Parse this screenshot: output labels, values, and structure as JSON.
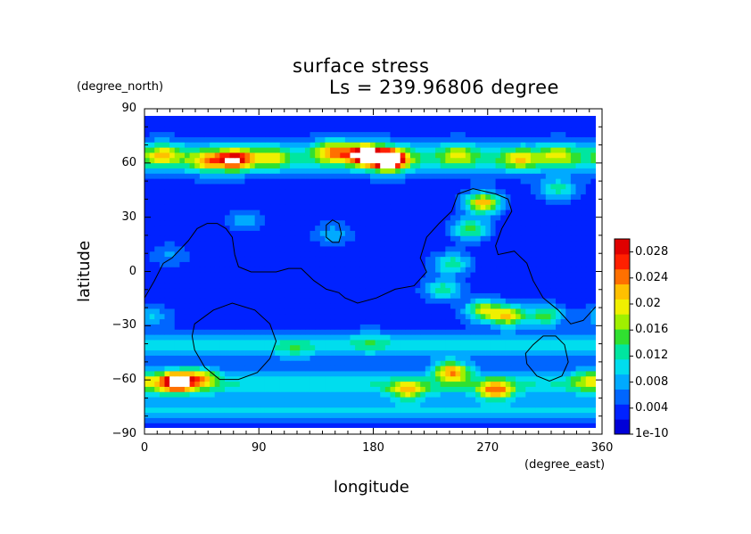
{
  "chart_data": {
    "type": "heatmap",
    "title": "surface stress",
    "subtitle": "Ls = 239.96806 degree",
    "xlabel": "longitude",
    "ylabel": "latitude",
    "x_unit": "(degree_east)",
    "y_unit": "(degree_north)",
    "xlim": [
      0,
      360
    ],
    "ylim": [
      -90,
      90
    ],
    "x_ticks": [
      "0",
      "90",
      "180",
      "270",
      "360"
    ],
    "y_ticks": [
      "90",
      "60",
      "30",
      "0",
      "-30",
      "-60",
      "-90"
    ],
    "colorbar": {
      "min": 0,
      "max": 0.03,
      "tick_labels": [
        "1e-10",
        "0.004",
        "0.008",
        "0.012",
        "0.016",
        "0.02",
        "0.024",
        "0.028"
      ],
      "tick_values": [
        0,
        0.004,
        0.008,
        0.012,
        0.016,
        0.02,
        0.024,
        0.028
      ],
      "colors": [
        "#0000d8",
        "#0022ff",
        "#0066ff",
        "#00aaff",
        "#00ddee",
        "#00e6a0",
        "#30e030",
        "#a0f000",
        "#f0f000",
        "#ffc000",
        "#ff7000",
        "#ff2000",
        "#e00000"
      ]
    },
    "grid": false,
    "features": [
      {
        "lon": 195,
        "lat": 65,
        "value": 0.032
      },
      {
        "lon": 175,
        "lat": 68,
        "value": 0.026
      },
      {
        "lon": 150,
        "lat": 70,
        "value": 0.016
      },
      {
        "lon": 72,
        "lat": 65,
        "value": 0.022
      },
      {
        "lon": 50,
        "lat": 64,
        "value": 0.014
      },
      {
        "lon": 15,
        "lat": 68,
        "value": 0.013
      },
      {
        "lon": 100,
        "lat": 66,
        "value": 0.011
      },
      {
        "lon": 250,
        "lat": 68,
        "value": 0.011
      },
      {
        "lon": 300,
        "lat": 65,
        "value": 0.012
      },
      {
        "lon": 330,
        "lat": 68,
        "value": 0.011
      },
      {
        "lon": 270,
        "lat": 40,
        "value": 0.022
      },
      {
        "lon": 260,
        "lat": 25,
        "value": 0.015
      },
      {
        "lon": 245,
        "lat": 5,
        "value": 0.013
      },
      {
        "lon": 238,
        "lat": -10,
        "value": 0.013
      },
      {
        "lon": 290,
        "lat": -25,
        "value": 0.02
      },
      {
        "lon": 270,
        "lat": -22,
        "value": 0.017
      },
      {
        "lon": 320,
        "lat": -25,
        "value": 0.015
      },
      {
        "lon": 245,
        "lat": -57,
        "value": 0.02
      },
      {
        "lon": 280,
        "lat": -68,
        "value": 0.018
      },
      {
        "lon": 210,
        "lat": -68,
        "value": 0.015
      },
      {
        "lon": 25,
        "lat": -63,
        "value": 0.027
      },
      {
        "lon": 45,
        "lat": -61,
        "value": 0.015
      },
      {
        "lon": 355,
        "lat": -62,
        "value": 0.012
      },
      {
        "lon": 330,
        "lat": 48,
        "value": 0.012
      },
      {
        "lon": 150,
        "lat": 22,
        "value": 0.008
      },
      {
        "lon": 80,
        "lat": 30,
        "value": 0.008
      },
      {
        "lon": 20,
        "lat": 10,
        "value": 0.007
      },
      {
        "lon": 180,
        "lat": -40,
        "value": 0.007
      },
      {
        "lon": 120,
        "lat": -45,
        "value": 0.007
      },
      {
        "lon": 5,
        "lat": -25,
        "value": 0.009
      }
    ],
    "bands": [
      {
        "lat": 66,
        "width": 9,
        "value": 0.009
      },
      {
        "lat": -42,
        "width": 7,
        "value": 0.007
      },
      {
        "lat": -65,
        "width": 8,
        "value": 0.008
      },
      {
        "lat": -80,
        "width": 5,
        "value": 0.006
      }
    ],
    "contours": [
      {
        "name": "northern-highland-boundary",
        "closed": false,
        "points": [
          [
            0,
            -15
          ],
          [
            8,
            -5
          ],
          [
            15,
            5
          ],
          [
            22,
            8
          ],
          [
            35,
            18
          ],
          [
            42,
            25
          ],
          [
            50,
            28
          ],
          [
            58,
            28
          ],
          [
            65,
            25
          ],
          [
            70,
            20
          ],
          [
            72,
            10
          ],
          [
            75,
            3
          ],
          [
            85,
            0
          ],
          [
            105,
            0
          ],
          [
            115,
            2
          ],
          [
            125,
            2
          ],
          [
            135,
            -5
          ],
          [
            145,
            -10
          ],
          [
            155,
            -12
          ],
          [
            160,
            -15
          ],
          [
            170,
            -18
          ],
          [
            185,
            -15
          ],
          [
            200,
            -10
          ],
          [
            215,
            -8
          ],
          [
            225,
            0
          ],
          [
            220,
            8
          ],
          [
            225,
            20
          ],
          [
            235,
            28
          ],
          [
            245,
            35
          ],
          [
            250,
            45
          ],
          [
            262,
            48
          ],
          [
            280,
            45
          ],
          [
            290,
            42
          ],
          [
            293,
            35
          ],
          [
            285,
            25
          ],
          [
            280,
            15
          ],
          [
            282,
            10
          ],
          [
            295,
            12
          ],
          [
            305,
            5
          ],
          [
            310,
            -5
          ],
          [
            318,
            -15
          ],
          [
            330,
            -22
          ],
          [
            340,
            -30
          ],
          [
            350,
            -28
          ],
          [
            360,
            -20
          ]
        ]
      },
      {
        "name": "olympus-outline",
        "closed": true,
        "points": [
          [
            145,
            27
          ],
          [
            150,
            30
          ],
          [
            155,
            28
          ],
          [
            157,
            22
          ],
          [
            155,
            17
          ],
          [
            150,
            17
          ],
          [
            145,
            20
          ]
        ]
      },
      {
        "name": "hellas-outline",
        "closed": true,
        "points": [
          [
            40,
            -30
          ],
          [
            55,
            -22
          ],
          [
            70,
            -18
          ],
          [
            88,
            -22
          ],
          [
            100,
            -30
          ],
          [
            105,
            -40
          ],
          [
            100,
            -50
          ],
          [
            90,
            -58
          ],
          [
            75,
            -62
          ],
          [
            60,
            -62
          ],
          [
            48,
            -55
          ],
          [
            40,
            -45
          ],
          [
            38,
            -37
          ]
        ]
      },
      {
        "name": "argyre-outline",
        "closed": true,
        "points": [
          [
            310,
            -42
          ],
          [
            318,
            -37
          ],
          [
            328,
            -37
          ],
          [
            335,
            -42
          ],
          [
            338,
            -52
          ],
          [
            333,
            -60
          ],
          [
            323,
            -63
          ],
          [
            313,
            -60
          ],
          [
            305,
            -53
          ],
          [
            304,
            -47
          ]
        ]
      }
    ]
  }
}
